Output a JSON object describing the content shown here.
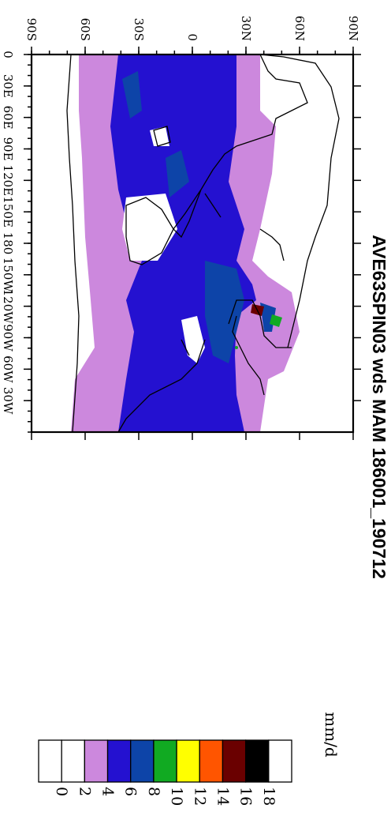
{
  "title": "AVE63SPIN03 wds MAM 186001_190712",
  "units": "mm/d",
  "map": {
    "lat_labels": [
      "90S",
      "60S",
      "30S",
      "0",
      "30N",
      "60N",
      "90N"
    ],
    "lon_labels": [
      "0",
      "30E",
      "60E",
      "90E",
      "120E",
      "150E",
      "180",
      "150W",
      "120W",
      "90W",
      "60W",
      "30W"
    ]
  },
  "colorbar": {
    "levels": [
      "0",
      "2",
      "4",
      "6",
      "8",
      "10",
      "12",
      "14",
      "16",
      "18"
    ],
    "colors": [
      "#ffffff",
      "#ffffff",
      "#cc88dd",
      "#2411d0",
      "#0d44a8",
      "#11aa22",
      "#ffff00",
      "#ff5500",
      "#6a0000",
      "#000000",
      "#ffffff"
    ]
  },
  "colors": {
    "light_band": "#cc88dd",
    "blue_band": "#2411d0",
    "dark_blue": "#0d44a8",
    "green": "#11aa22",
    "dark_red": "#6a0000",
    "coastline": "#000000"
  }
}
